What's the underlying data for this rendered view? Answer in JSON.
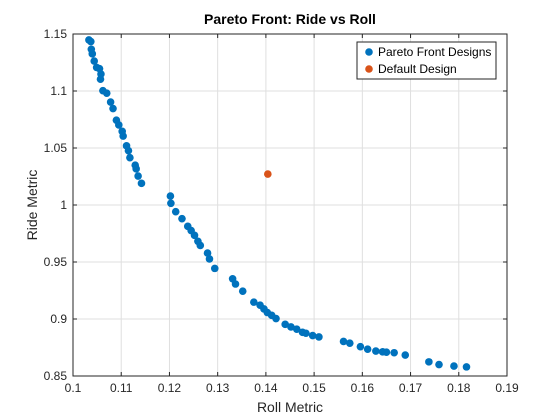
{
  "chart_data": {
    "type": "scatter",
    "title": "Pareto Front: Ride vs Roll",
    "xlabel": "Roll Metric",
    "ylabel": "Ride Metric",
    "xlim": [
      0.1,
      0.19
    ],
    "ylim": [
      0.85,
      1.15
    ],
    "xticks": [
      0.1,
      0.11,
      0.12,
      0.13,
      0.14,
      0.15,
      0.16,
      0.17,
      0.18,
      0.19
    ],
    "xtick_labels": [
      "0.1",
      "0.11",
      "0.12",
      "0.13",
      "0.14",
      "0.15",
      "0.16",
      "0.17",
      "0.18",
      "0.19"
    ],
    "yticks": [
      0.85,
      0.9,
      0.95,
      1.0,
      1.05,
      1.1,
      1.15
    ],
    "ytick_labels": [
      "0.85",
      "0.9",
      "0.95",
      "1",
      "1.05",
      "1.1",
      "1.15"
    ],
    "grid": true,
    "legend_position": "top-right",
    "series": [
      {
        "name": "Pareto Front Designs",
        "color": "#0072BD",
        "points": [
          [
            0.1033,
            1.1448
          ],
          [
            0.1037,
            1.1434
          ],
          [
            0.1038,
            1.1366
          ],
          [
            0.104,
            1.1326
          ],
          [
            0.1044,
            1.1263
          ],
          [
            0.1049,
            1.1207
          ],
          [
            0.1055,
            1.1196
          ],
          [
            0.1058,
            1.1149
          ],
          [
            0.1057,
            1.1104
          ],
          [
            0.1062,
            1.1003
          ],
          [
            0.107,
            1.0981
          ],
          [
            0.1078,
            1.0903
          ],
          [
            0.1083,
            1.0846
          ],
          [
            0.109,
            1.0744
          ],
          [
            0.1095,
            1.0702
          ],
          [
            0.1102,
            1.0646
          ],
          [
            0.1104,
            1.0605
          ],
          [
            0.1111,
            1.0519
          ],
          [
            0.1115,
            1.0476
          ],
          [
            0.1118,
            1.0415
          ],
          [
            0.1129,
            1.0349
          ],
          [
            0.1131,
            1.0317
          ],
          [
            0.1135,
            1.0254
          ],
          [
            0.1142,
            1.019
          ],
          [
            0.1202,
            1.0078
          ],
          [
            0.1203,
            1.0015
          ],
          [
            0.1213,
            0.9941
          ],
          [
            0.1226,
            0.988
          ],
          [
            0.1238,
            0.9813
          ],
          [
            0.1245,
            0.9776
          ],
          [
            0.1252,
            0.9734
          ],
          [
            0.1259,
            0.9682
          ],
          [
            0.1264,
            0.9645
          ],
          [
            0.1279,
            0.9578
          ],
          [
            0.1283,
            0.9527
          ],
          [
            0.1294,
            0.9444
          ],
          [
            0.1331,
            0.9353
          ],
          [
            0.1337,
            0.9307
          ],
          [
            0.1352,
            0.9244
          ],
          [
            0.1375,
            0.9148
          ],
          [
            0.1388,
            0.9121
          ],
          [
            0.1396,
            0.9088
          ],
          [
            0.1403,
            0.9057
          ],
          [
            0.1412,
            0.9032
          ],
          [
            0.1421,
            0.9004
          ],
          [
            0.144,
            0.8953
          ],
          [
            0.1452,
            0.893
          ],
          [
            0.1464,
            0.8911
          ],
          [
            0.1476,
            0.8883
          ],
          [
            0.1483,
            0.8875
          ],
          [
            0.1497,
            0.8855
          ],
          [
            0.151,
            0.8843
          ],
          [
            0.1561,
            0.8803
          ],
          [
            0.1574,
            0.8788
          ],
          [
            0.1596,
            0.8757
          ],
          [
            0.1611,
            0.8735
          ],
          [
            0.1628,
            0.8719
          ],
          [
            0.1642,
            0.8712
          ],
          [
            0.165,
            0.8709
          ],
          [
            0.1666,
            0.8704
          ],
          [
            0.1689,
            0.8684
          ],
          [
            0.1738,
            0.8624
          ],
          [
            0.1759,
            0.86
          ],
          [
            0.179,
            0.8587
          ],
          [
            0.1816,
            0.858
          ]
        ]
      },
      {
        "name": "Default Design",
        "color": "#D95319",
        "points": [
          [
            0.1404,
            1.0271
          ]
        ]
      }
    ]
  }
}
